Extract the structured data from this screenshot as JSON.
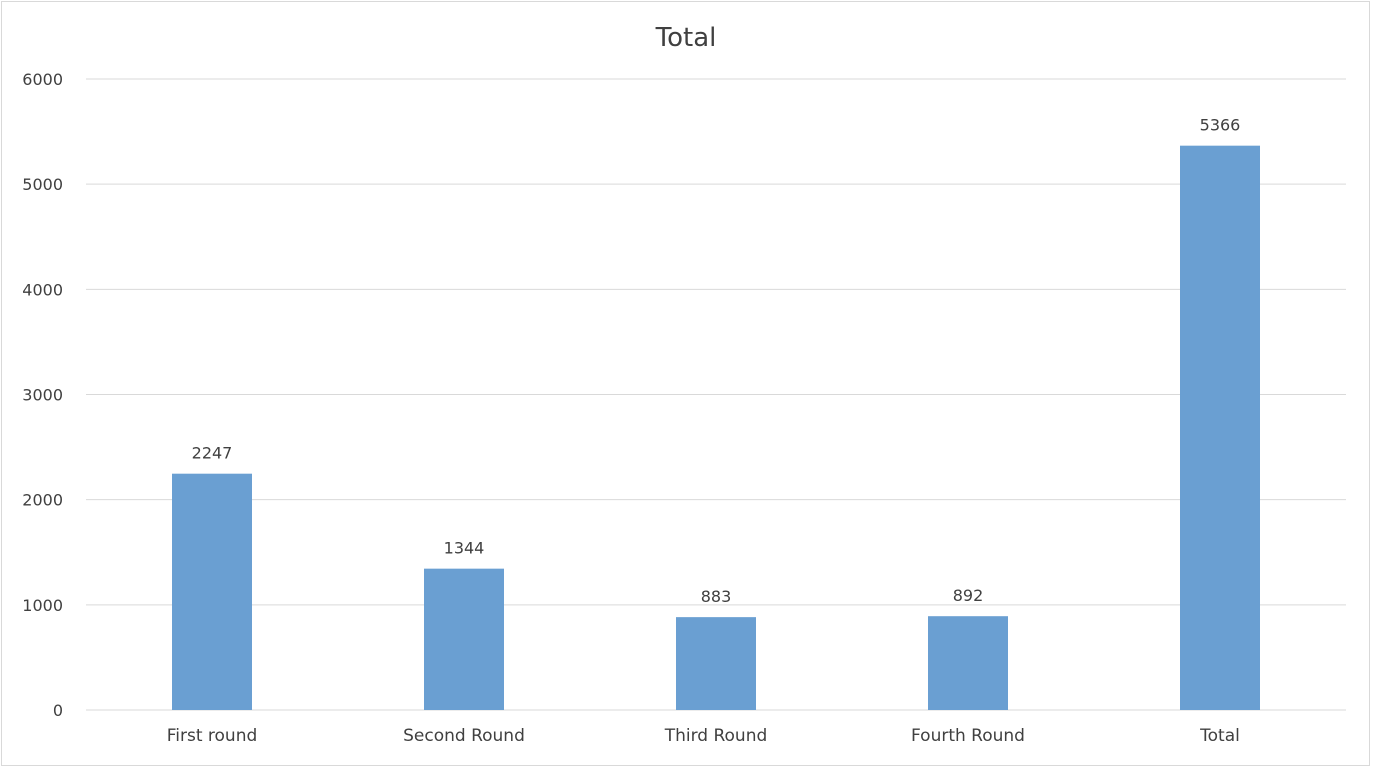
{
  "chart_data": {
    "type": "bar",
    "title": "Total",
    "categories": [
      "First round",
      "Second Round",
      "Third Round",
      "Fourth Round",
      "Total"
    ],
    "values": [
      2247,
      1344,
      883,
      892,
      5366
    ],
    "data_labels": [
      "2247",
      "1344",
      "883",
      "892",
      "5366"
    ],
    "y_ticks": [
      "0",
      "1000",
      "2000",
      "3000",
      "4000",
      "5000",
      "6000"
    ],
    "ylim": [
      0,
      6000
    ],
    "xlabel": "",
    "ylabel": "",
    "grid": true,
    "legend": "none",
    "bar_color": "#6a9fd2",
    "grid_color": "#d9d9d9"
  }
}
